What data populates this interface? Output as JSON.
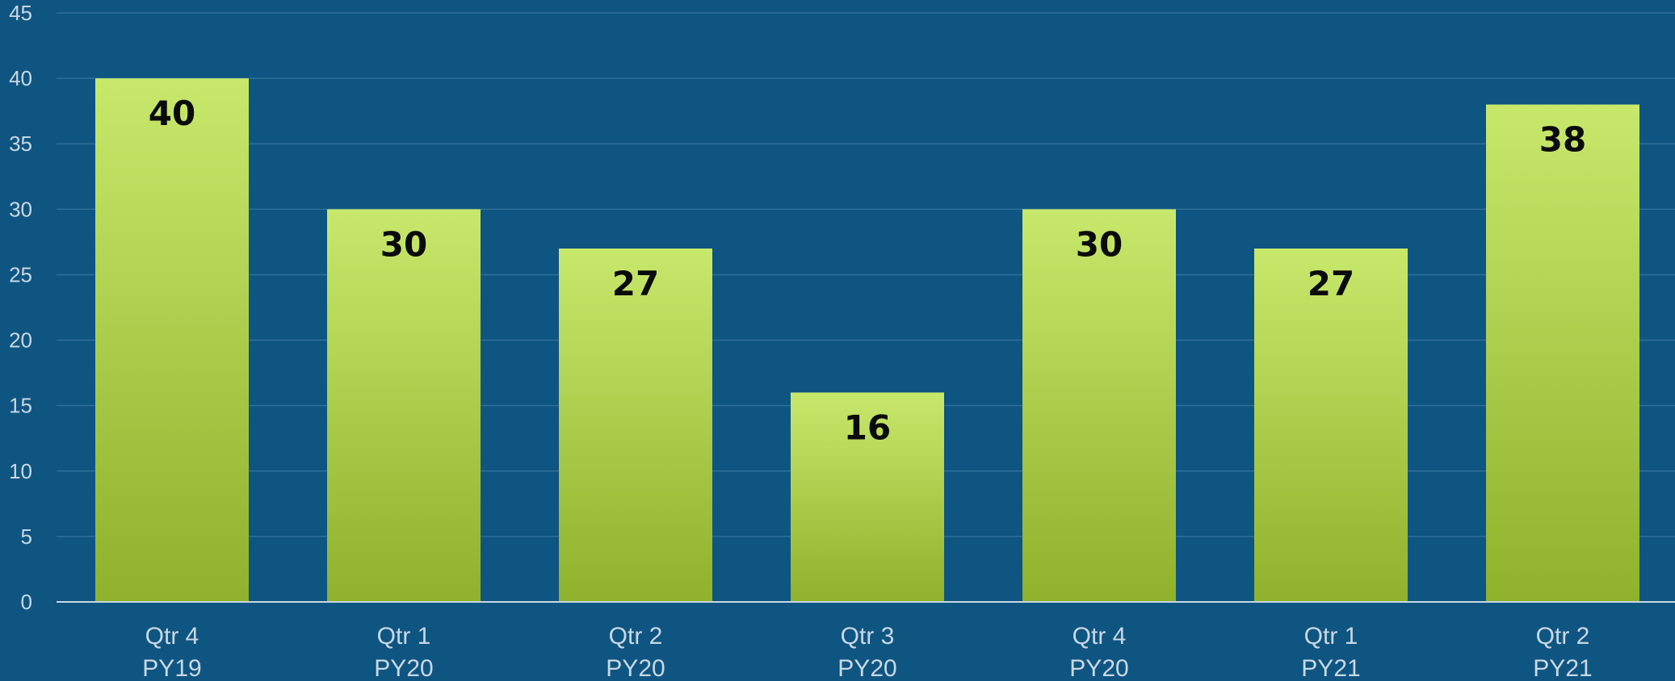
{
  "chart_data": {
    "type": "bar",
    "categories": [
      [
        "Qtr 4",
        "PY19"
      ],
      [
        "Qtr 1",
        "PY20"
      ],
      [
        "Qtr 2",
        "PY20"
      ],
      [
        "Qtr 3",
        "PY20"
      ],
      [
        "Qtr 4",
        "PY20"
      ],
      [
        "Qtr 1",
        "PY21"
      ],
      [
        "Qtr 2",
        "PY21"
      ]
    ],
    "values": [
      40,
      30,
      27,
      16,
      30,
      27,
      38
    ],
    "data_labels": [
      "40",
      "30",
      "27",
      "16",
      "30",
      "27",
      "38"
    ],
    "y_ticks": [
      "0",
      "5",
      "10",
      "15",
      "20",
      "25",
      "30",
      "35",
      "40",
      "45"
    ],
    "ylim": [
      0,
      45
    ],
    "title": "",
    "xlabel": "",
    "ylabel": "",
    "grid": true,
    "legend": "none",
    "colors": {
      "background": "#0f5581",
      "gridline": "#2f6f99",
      "axis_line": "#c9d8e4",
      "bar_top": "#c8e86c",
      "bar_bottom": "#8fb12b",
      "tick_text": "#c9d8e4",
      "label_text": "#0b0b0b"
    }
  }
}
